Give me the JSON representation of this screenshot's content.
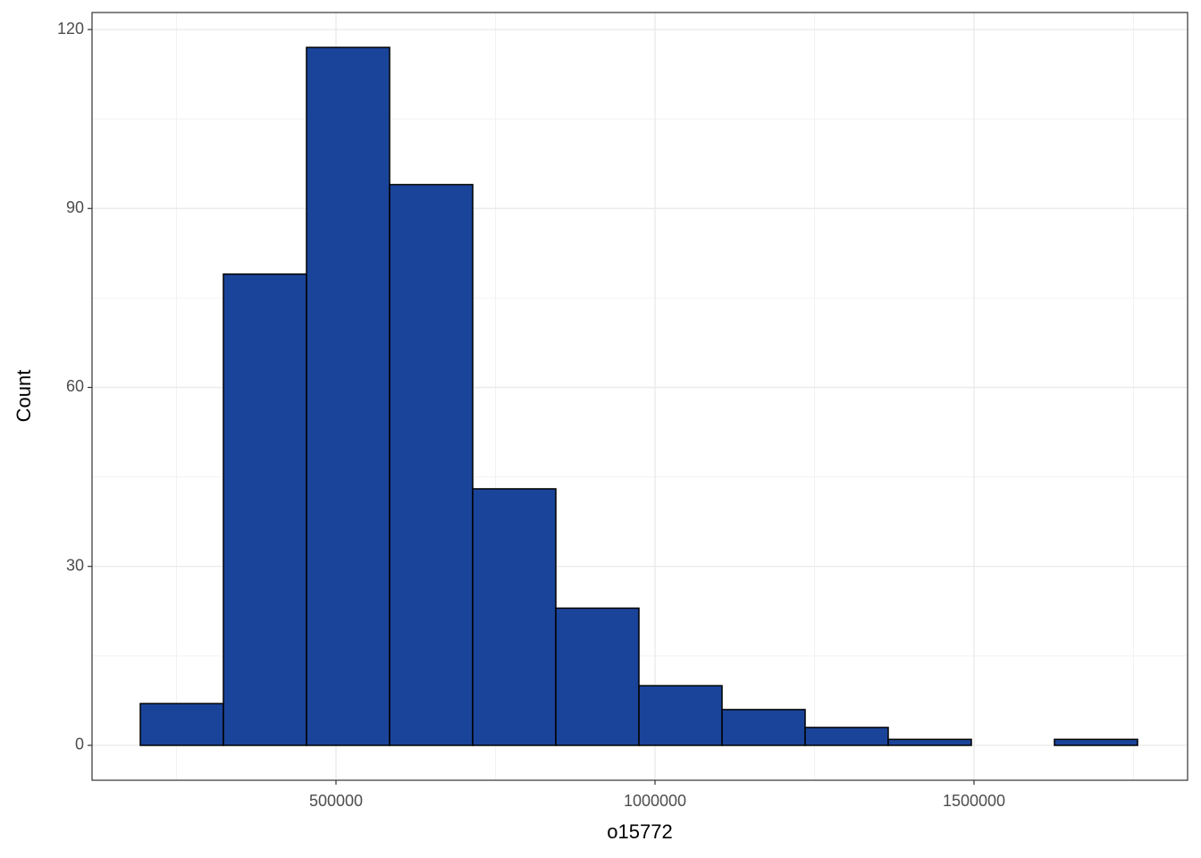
{
  "chart_data": {
    "type": "histogram",
    "x_label": "o15772",
    "y_label": "Count",
    "bins": [
      193300,
      323550,
      453800,
      584050,
      714300,
      844550,
      974800,
      1105050,
      1235300,
      1365550,
      1495800,
      1626050,
      1756300
    ],
    "values": [
      7,
      79,
      117,
      94,
      43,
      23,
      10,
      6,
      3,
      1,
      0,
      1
    ],
    "color": "#1a4499",
    "edge_color": "#000000",
    "xlim": [
      117650,
      1834750
    ],
    "ylim": [
      -5.85,
      122.85
    ],
    "xticks": [
      500000,
      1000000,
      1500000
    ],
    "yticks": [
      0,
      30,
      60,
      90,
      120
    ],
    "xminor": [
      250000,
      750000,
      1250000,
      1750000
    ],
    "yminor": [
      15,
      45,
      75,
      105
    ],
    "grid": true
  }
}
